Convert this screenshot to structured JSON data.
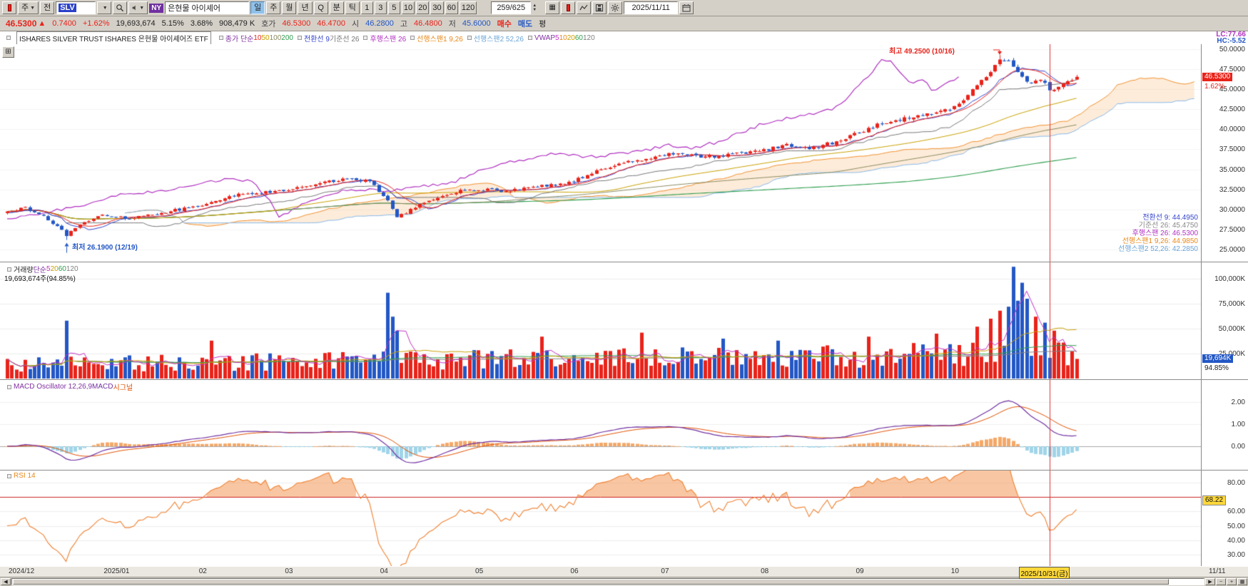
{
  "icons": {
    "chevron_down": "▼",
    "spin_up": "▲",
    "spin_down": "▼",
    "scroll_left": "◀",
    "scroll_right": "▶",
    "plus": "+",
    "minus": "−",
    "grid": "▦",
    "grid2": "⊞"
  },
  "colors": {
    "up": "#e8231a",
    "down": "#2357c5",
    "ma10": "#e8231a",
    "ma50": "#c8a000",
    "ma100": "#8a8a60",
    "ma200": "#2e9e4f",
    "tenkan": "#3344cc",
    "kijun": "#777777",
    "chikou": "#b030c0",
    "senkou1": "#f09030",
    "senkou2": "#88b8e8",
    "cloud": "rgba(244,160,70,0.20)",
    "vol_ma5": "#c030c0",
    "vol_ma20": "#c8a000",
    "vol_ma60": "#2e9e4f",
    "vol_ma120": "#808080",
    "macd": "#7030a0",
    "signal": "#e05000",
    "hist_pos": "#f4a868",
    "hist_neg": "#a0d4e8",
    "rsi": "#f08030",
    "rsi_fill": "rgba(240,128,48,0.45)",
    "overbought": "#cc2222",
    "crosshair": "#dd3333"
  },
  "toolbar1": {
    "combo1": "주",
    "btn_jeon": "전",
    "ticker": "SLV",
    "market_badge": "NY",
    "name": "은현물 아이셰어",
    "periods": [
      "일",
      "주",
      "월",
      "년"
    ],
    "btn_q": "Q",
    "btn_min": "분",
    "btn_tick": "틱",
    "intervals": [
      "1",
      "3",
      "5",
      "10",
      "20",
      "30",
      "60",
      "120"
    ],
    "counter": "259/625",
    "date": "2025/11/11"
  },
  "toolbar2": {
    "price": "46.5300",
    "arrow": "▲",
    "change": "0.7400",
    "change_pct": "+1.62%",
    "volume": "19,693,674",
    "turnover_pct": "5.15%",
    "pct2": "3.68%",
    "amount": "908,479 K",
    "hoga_label": "호가",
    "ask": "46.5300",
    "bid": "46.4700",
    "open_label": "시",
    "open": "46.2800",
    "high_label": "고",
    "high": "46.4800",
    "low_label": "저",
    "low": "45.6000",
    "buy": "매수",
    "sell": "매도",
    "avg": "평"
  },
  "main": {
    "title": "ISHARES SILVER TRUST ISHARES 은현물 아이셰어즈 ETF",
    "lc": "LC:77.66",
    "hc": "HC:-5.52",
    "price_badge": "46.5300",
    "pct_badge": "1.62%",
    "high_annot": "최고 49.2500 (10/16)",
    "low_annot": "최저 26.1900 (12/19)",
    "legend_groups": [
      [
        {
          "t": "종가 단순 ",
          "c": "#8030a0"
        },
        {
          "t": "10 ",
          "c": "#e8231a"
        },
        {
          "t": "50 ",
          "c": "#c8a000"
        },
        {
          "t": "100 ",
          "c": "#8a8a60"
        },
        {
          "t": "200",
          "c": "#2e9e4f"
        }
      ],
      [
        {
          "t": "전환선 9 ",
          "c": "#3344cc"
        },
        {
          "t": "기준선 26",
          "c": "#777777"
        }
      ],
      [
        {
          "t": "후행스팬 26",
          "c": "#b030c0"
        }
      ],
      [
        {
          "t": "선행스팬1 9,26",
          "c": "#e8881a"
        }
      ],
      [
        {
          "t": "선행스팬2 52,26",
          "c": "#6aa5d8"
        }
      ],
      [
        {
          "t": "VWAP ",
          "c": "#8030a0"
        },
        {
          "t": "5 ",
          "c": "#c030c0"
        },
        {
          "t": "10 ",
          "c": "#e8881a"
        },
        {
          "t": "20 ",
          "c": "#c8a000"
        },
        {
          "t": "60 ",
          "c": "#2e9e4f"
        },
        {
          "t": "120",
          "c": "#808080"
        }
      ]
    ],
    "indicator_values": [
      {
        "t": "전환선 9: 44.4950",
        "c": "#3344cc"
      },
      {
        "t": "기준선 26: 45.4750",
        "c": "#888888"
      },
      {
        "t": "후행스팬 26: 46.5300",
        "c": "#b030c0"
      },
      {
        "t": "선행스팬1 9,26: 44.9850",
        "c": "#e8881a"
      },
      {
        "t": "선행스팬2 52,26: 42.2850",
        "c": "#6aa5d8"
      }
    ]
  },
  "volume_panel": {
    "legend_groups": [
      [
        {
          "t": "거래량 ",
          "c": "#222222"
        },
        {
          "t": "단순 ",
          "c": "#8030a0"
        },
        {
          "t": "5 ",
          "c": "#c030c0"
        },
        {
          "t": "20 ",
          "c": "#c8a000"
        },
        {
          "t": "60 ",
          "c": "#2e9e4f"
        },
        {
          "t": "120",
          "c": "#808080"
        }
      ]
    ],
    "subtitle": "19,693,674주(94.85%)",
    "badge": "19,694K",
    "badge_sub": "94.85%"
  },
  "macd_panel": {
    "legend_groups": [
      [
        {
          "t": "MACD Oscillator 12,26,9",
          "c": "#8030a0"
        },
        {
          "t": "  MACD",
          "c": "#7030a0"
        },
        {
          "t": "  시그널",
          "c": "#e05000"
        }
      ]
    ]
  },
  "rsi_panel": {
    "legend_groups": [
      [
        {
          "t": "RSI 14",
          "c": "#e8881a"
        }
      ]
    ],
    "badge": "68.22"
  },
  "chart_data": {
    "type": "candlestick",
    "title": "ISHARES SILVER TRUST ISHARES 은현물 아이셰어즈 ETF",
    "symbol": "SLV",
    "x_range": "2024/12 ~ 2025/11/11",
    "panels": [
      "price+ichimoku+ma",
      "volume",
      "macd",
      "rsi"
    ],
    "candles": {
      "count": 237,
      "close_anchors": [
        [
          0,
          29.6
        ],
        [
          4,
          30.2
        ],
        [
          8,
          29.2
        ],
        [
          12,
          27.4
        ],
        [
          13,
          26.8
        ],
        [
          16,
          28.2
        ],
        [
          21,
          29.3
        ],
        [
          27,
          28.9
        ],
        [
          34,
          29.6
        ],
        [
          42,
          30.4
        ],
        [
          50,
          31.8
        ],
        [
          57,
          32.1
        ],
        [
          61,
          32.4
        ],
        [
          68,
          33.2
        ],
        [
          75,
          33.9
        ],
        [
          80,
          33.5
        ],
        [
          84,
          31.0
        ],
        [
          86,
          29.0
        ],
        [
          88,
          29.6
        ],
        [
          93,
          31.2
        ],
        [
          99,
          32.2
        ],
        [
          103,
          32.5
        ],
        [
          110,
          32.3
        ],
        [
          117,
          32.9
        ],
        [
          124,
          33.3
        ],
        [
          130,
          34.8
        ],
        [
          136,
          35.9
        ],
        [
          141,
          36.2
        ],
        [
          148,
          37.1
        ],
        [
          154,
          36.5
        ],
        [
          160,
          36.8
        ],
        [
          166,
          37.3
        ],
        [
          172,
          38.0
        ],
        [
          177,
          37.6
        ],
        [
          182,
          38.3
        ],
        [
          187,
          39.4
        ],
        [
          193,
          40.7
        ],
        [
          199,
          41.4
        ],
        [
          205,
          42.1
        ],
        [
          208,
          42.6
        ],
        [
          212,
          44.2
        ],
        [
          216,
          46.5
        ],
        [
          219,
          48.9
        ],
        [
          221,
          48.4
        ],
        [
          223,
          47.2
        ],
        [
          226,
          45.6
        ],
        [
          228,
          46.3
        ],
        [
          230,
          44.9
        ],
        [
          232,
          45.4
        ],
        [
          234,
          45.8
        ],
        [
          236,
          46.53
        ]
      ],
      "high_point": {
        "index": 219,
        "value": 49.25
      },
      "low_point": {
        "index": 13,
        "value": 26.19
      },
      "last_close": 46.53,
      "crosshair_index": 230
    },
    "volume": {
      "unit": "K",
      "last": 19694,
      "spikes": [
        [
          13,
          58000
        ],
        [
          45,
          38000
        ],
        [
          84,
          86000
        ],
        [
          85,
          62000
        ],
        [
          86,
          48000
        ],
        [
          118,
          42000
        ],
        [
          140,
          46000
        ],
        [
          158,
          40000
        ],
        [
          170,
          38000
        ],
        [
          190,
          42000
        ],
        [
          205,
          45000
        ],
        [
          214,
          52000
        ],
        [
          217,
          60000
        ],
        [
          219,
          68000
        ],
        [
          221,
          72000
        ],
        [
          222,
          112000
        ],
        [
          223,
          78000
        ],
        [
          224,
          96000
        ],
        [
          225,
          80000
        ],
        [
          227,
          62000
        ],
        [
          229,
          56000
        ],
        [
          231,
          48000
        ],
        [
          233,
          36000
        ],
        [
          236,
          19694
        ]
      ]
    },
    "indicators": {
      "ma": [
        10,
        50,
        100,
        200
      ],
      "ichimoku": {
        "tenkan": 9,
        "kijun": 26,
        "senkou2": 52,
        "shift": 26
      },
      "macd": [
        12,
        26,
        9
      ],
      "rsi": 14,
      "vwap": [
        5,
        10,
        20,
        60,
        120
      ]
    },
    "y_axis": {
      "main": {
        "ticks": [
          [
            50,
            "50.0000"
          ],
          [
            47.5,
            "47.5000"
          ],
          [
            45,
            "45.0000"
          ],
          [
            42.5,
            "42.5000"
          ],
          [
            40,
            "40.0000"
          ],
          [
            37.5,
            "37.5000"
          ],
          [
            35,
            "35.0000"
          ],
          [
            32.5,
            "32.5000"
          ],
          [
            30,
            "30.0000"
          ],
          [
            27.5,
            "27.5000"
          ],
          [
            25,
            "25.0000"
          ]
        ]
      },
      "volume": {
        "ticks": [
          [
            100000,
            "100,000K"
          ],
          [
            75000,
            "75,000K"
          ],
          [
            50000,
            "50,000K"
          ],
          [
            25000,
            "25,000K"
          ]
        ]
      },
      "macd": {
        "ticks": [
          [
            2,
            "2.00"
          ],
          [
            1,
            "1.00"
          ],
          [
            0,
            "0.00"
          ]
        ]
      },
      "rsi": {
        "ticks": [
          [
            80,
            "80.00"
          ],
          [
            60,
            "60.00"
          ],
          [
            50,
            "50.00"
          ],
          [
            40,
            "40.00"
          ],
          [
            30,
            "30.00"
          ]
        ],
        "overbought": 70
      }
    },
    "x_axis": {
      "month_starts": [
        [
          0,
          "2024/12"
        ],
        [
          21,
          "2025/01"
        ],
        [
          42,
          "02"
        ],
        [
          61,
          "03"
        ],
        [
          82,
          "04"
        ],
        [
          103,
          "05"
        ],
        [
          124,
          "06"
        ],
        [
          144,
          "07"
        ],
        [
          166,
          "08"
        ],
        [
          187,
          "09"
        ],
        [
          208,
          "10"
        ]
      ],
      "highlight": {
        "index": 230,
        "label": "2025/10/31(금)"
      },
      "end_label": "11/11"
    }
  }
}
